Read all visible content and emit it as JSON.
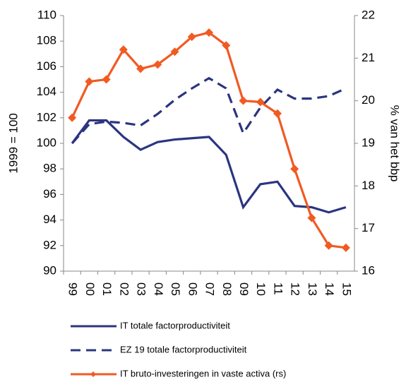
{
  "chart_data": {
    "type": "line",
    "categories": [
      "99",
      "00",
      "01",
      "02",
      "03",
      "04",
      "05",
      "06",
      "07",
      "08",
      "09",
      "10",
      "11",
      "12",
      "13",
      "14",
      "15"
    ],
    "ylabel": "1999 = 100",
    "y2label": "% van het bbp",
    "ylim": [
      90,
      110
    ],
    "yticks": [
      90,
      92,
      94,
      96,
      98,
      100,
      102,
      104,
      106,
      108,
      110
    ],
    "y2lim": [
      16,
      22
    ],
    "y2ticks": [
      16,
      17,
      18,
      19,
      20,
      21,
      22
    ],
    "legend": "bottom",
    "series": [
      {
        "name": "IT totale factorproductiviteit",
        "color": "#2b3580",
        "line_style": "solid",
        "values": [
          100.0,
          101.8,
          101.8,
          100.5,
          99.5,
          100.1,
          100.3,
          100.4,
          100.5,
          99.1,
          95.0,
          96.8,
          97.0,
          95.1,
          95.0,
          94.6,
          95.0
        ]
      },
      {
        "name": "EZ 19 totale factorproductiviteit",
        "color": "#2b3580",
        "line_style": "dashed",
        "values": [
          100.0,
          101.5,
          101.7,
          101.6,
          101.4,
          102.3,
          103.4,
          104.3,
          105.1,
          104.3,
          100.8,
          102.8,
          104.2,
          103.5,
          103.5,
          103.7,
          104.3
        ]
      },
      {
        "name": "IT bruto-investeringen in vaste activa (rs)",
        "color": "#f15a22",
        "line_style": "solid",
        "marker": "diamond",
        "axis": "y2",
        "values": [
          19.6,
          20.45,
          20.5,
          21.2,
          20.75,
          20.85,
          21.15,
          21.5,
          21.6,
          21.3,
          20.0,
          19.97,
          19.7,
          18.4,
          17.25,
          16.6,
          16.55
        ]
      }
    ]
  }
}
